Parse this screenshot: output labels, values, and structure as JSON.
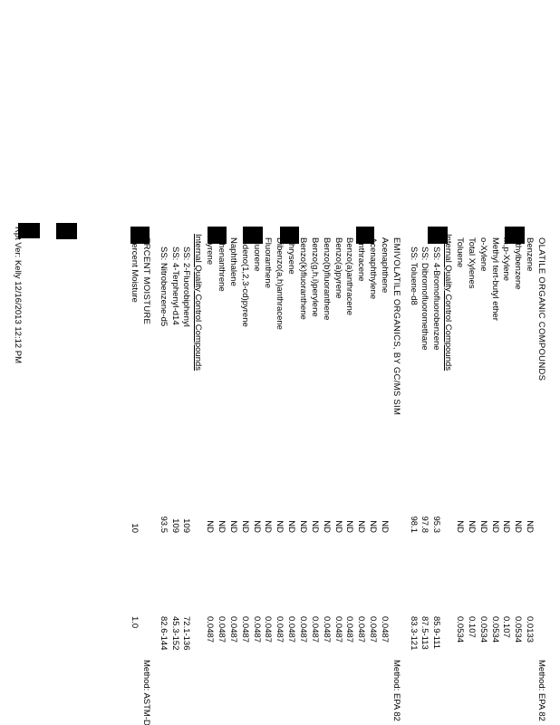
{
  "report": {
    "sections": [
      {
        "title": "OLATILE ORGANIC COMPOUNDS",
        "method": "Method: EPA 82",
        "items": [
          {
            "analyte": "Benzene",
            "result": "ND",
            "limit": "0.0133"
          },
          {
            "analyte": "Ethylbenzene",
            "result": "ND",
            "limit": "0.0534"
          },
          {
            "analyte": "m,p-Xylene",
            "result": "ND",
            "limit": "0.107"
          },
          {
            "analyte": "Methyl tert-butyl ether",
            "result": "ND",
            "limit": "0.0534"
          },
          {
            "analyte": "o-Xylene",
            "result": "ND",
            "limit": "0.0534"
          },
          {
            "analyte": "Total Xylenes",
            "result": "ND",
            "limit": "0.107"
          },
          {
            "analyte": "Toluene",
            "result": "ND",
            "limit": "0.0534"
          },
          {
            "label": "Internal Quality Control Compounds"
          },
          {
            "analyte": "SS: 4-Bromofluorobenzene",
            "result": "95.3",
            "limit": "85.9-111"
          },
          {
            "analyte": "SS: Dibromofluoromethane",
            "result": "97.8",
            "limit": "87.5-113"
          },
          {
            "analyte": "SS: Toluene-d8",
            "result": "98.1",
            "limit": "83.3-121"
          }
        ]
      },
      {
        "title": "EMIVOLATILE ORGANICS, BY GC/MS SIM",
        "method": "Method: EPA 82",
        "items": [
          {
            "analyte": "Acenaphthene",
            "result": "ND",
            "limit": "0.0487"
          },
          {
            "analyte": "Acenaphthylene",
            "result": "ND",
            "limit": "0.0487"
          },
          {
            "analyte": "Anthracene",
            "result": "ND",
            "limit": "0.0487"
          },
          {
            "analyte": "Benzo(a)anthracene",
            "result": "ND",
            "limit": "0.0487"
          },
          {
            "analyte": "Benzo(a)pyrene",
            "result": "ND",
            "limit": "0.0487"
          },
          {
            "analyte": "Benzo(b)fluoranthene",
            "result": "ND",
            "limit": "0.0487"
          },
          {
            "analyte": "Benzo(g,h,i)perylene",
            "result": "ND",
            "limit": "0.0487"
          },
          {
            "analyte": "Benzo(k)fluoranthene",
            "result": "ND",
            "limit": "0.0487"
          },
          {
            "analyte": "Chrysene",
            "result": "ND",
            "limit": "0.0487"
          },
          {
            "analyte": "Dibenzo(a,h)anthracene",
            "result": "ND",
            "limit": "0.0487"
          },
          {
            "analyte": "Fluoranthene",
            "result": "ND",
            "limit": "0.0487"
          },
          {
            "analyte": "Fluorene",
            "result": "ND",
            "limit": "0.0487"
          },
          {
            "analyte": "Indeno(1,2,3-cd)pyrene",
            "result": "ND",
            "limit": "0.0487"
          },
          {
            "analyte": "Naphthalene",
            "result": "ND",
            "limit": "0.0487"
          },
          {
            "analyte": "Phenanthrene",
            "result": "ND",
            "limit": "0.0487"
          },
          {
            "analyte": "Pyrene",
            "result": "ND",
            "limit": "0.0487"
          },
          {
            "label": "Internal Quality Control Compounds"
          },
          {
            "analyte": "SS: 2-Fluorobiphenyl",
            "result": "109",
            "limit": "72.1-136"
          },
          {
            "analyte": "SS: 4-Terphenyl-d14",
            "result": "109",
            "limit": "45.3-152"
          },
          {
            "analyte": "SS: Nitrobenzene-d5",
            "result": "93.5",
            "limit": "82.6-144"
          }
        ]
      },
      {
        "title": "ERCENT MOISTURE",
        "method": "Method: ASTM-D",
        "items": [
          {
            "analyte": "Percent Moisture",
            "result": "10",
            "limit": "1.0"
          }
        ]
      }
    ],
    "footer": "Rpt Ver: Kelly 12/16/2013 12:12 PM"
  }
}
